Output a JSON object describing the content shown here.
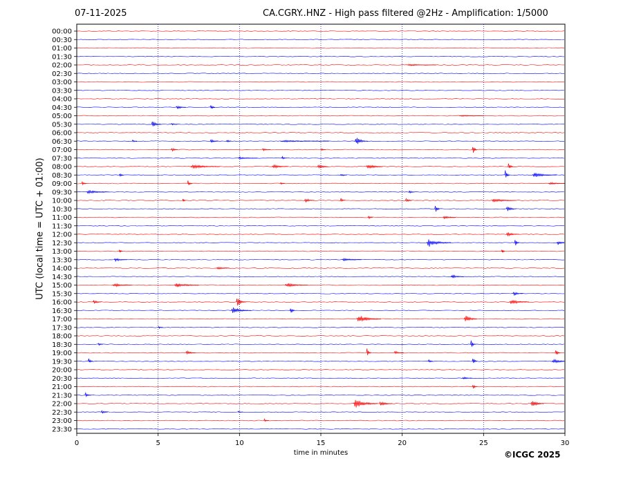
{
  "header": {
    "date": "07-11-2025",
    "title": "CA.CGRY..HNZ - High pass filtered @2Hz - Amplification: 1/5000"
  },
  "footer": {
    "copyright": "©ICGC 2025"
  },
  "colors": {
    "odd_trace": "#ff0000",
    "even_trace": "#0000ff",
    "vgrid": "#00008b"
  },
  "chart_data": {
    "type": "line",
    "title": "CA.CGRY..HNZ - High pass filtered @2Hz - Amplification: 1/5000",
    "xlabel": "time in minutes",
    "ylabel": "UTC (local time = UTC + 01:00)",
    "xlim": [
      0,
      30
    ],
    "x_ticks": [
      0,
      5,
      10,
      15,
      20,
      25,
      30
    ],
    "grid": "vertical dotted at 5-minute intervals",
    "row_labels": [
      "00:00",
      "00:30",
      "01:00",
      "01:30",
      "02:00",
      "02:30",
      "03:00",
      "03:30",
      "04:00",
      "04:30",
      "05:00",
      "05:30",
      "06:00",
      "06:30",
      "07:00",
      "07:30",
      "08:00",
      "08:30",
      "09:00",
      "09:30",
      "10:00",
      "10:30",
      "11:00",
      "11:30",
      "12:00",
      "12:30",
      "13:00",
      "13:30",
      "14:00",
      "14:30",
      "15:00",
      "15:30",
      "16:00",
      "16:30",
      "17:00",
      "17:30",
      "18:00",
      "18:30",
      "19:00",
      "19:30",
      "20:00",
      "20:30",
      "21:00",
      "21:30",
      "22:00",
      "22:30",
      "23:00",
      "23:30"
    ],
    "row_colors": "alternating red (even index) and blue (odd index)",
    "events": [
      {
        "row": "02:00",
        "minute": 20.3,
        "amp": 0.15,
        "dur": 1.8
      },
      {
        "row": "04:30",
        "minute": 6.1,
        "amp": 0.35,
        "dur": 0.6
      },
      {
        "row": "04:30",
        "minute": 8.2,
        "amp": 0.45,
        "dur": 0.3
      },
      {
        "row": "05:00",
        "minute": 23.5,
        "amp": 0.12,
        "dur": 1.5
      },
      {
        "row": "05:30",
        "minute": 4.6,
        "amp": 0.55,
        "dur": 0.6
      },
      {
        "row": "05:30",
        "minute": 5.8,
        "amp": 0.2,
        "dur": 0.4
      },
      {
        "row": "06:30",
        "minute": 3.4,
        "amp": 0.3,
        "dur": 0.3
      },
      {
        "row": "06:30",
        "minute": 8.2,
        "amp": 0.3,
        "dur": 0.5
      },
      {
        "row": "06:30",
        "minute": 9.2,
        "amp": 0.3,
        "dur": 0.3
      },
      {
        "row": "06:30",
        "minute": 12.5,
        "amp": 0.15,
        "dur": 3.0
      },
      {
        "row": "06:30",
        "minute": 17.1,
        "amp": 0.6,
        "dur": 0.8
      },
      {
        "row": "07:00",
        "minute": 5.8,
        "amp": 0.35,
        "dur": 0.4
      },
      {
        "row": "07:00",
        "minute": 11.4,
        "amp": 0.2,
        "dur": 0.5
      },
      {
        "row": "07:00",
        "minute": 15.0,
        "amp": 0.2,
        "dur": 0.3
      },
      {
        "row": "07:00",
        "minute": 24.3,
        "amp": 0.8,
        "dur": 0.3
      },
      {
        "row": "07:30",
        "minute": 9.9,
        "amp": 0.2,
        "dur": 1.2
      },
      {
        "row": "07:30",
        "minute": 12.6,
        "amp": 0.35,
        "dur": 0.3
      },
      {
        "row": "08:00",
        "minute": 7.0,
        "amp": 0.35,
        "dur": 1.8
      },
      {
        "row": "08:00",
        "minute": 12.0,
        "amp": 0.3,
        "dur": 1.0
      },
      {
        "row": "08:00",
        "minute": 14.8,
        "amp": 0.5,
        "dur": 0.6
      },
      {
        "row": "08:00",
        "minute": 17.8,
        "amp": 0.4,
        "dur": 1.0
      },
      {
        "row": "08:00",
        "minute": 26.5,
        "amp": 0.6,
        "dur": 0.3
      },
      {
        "row": "08:30",
        "minute": 2.6,
        "amp": 0.3,
        "dur": 0.3
      },
      {
        "row": "08:30",
        "minute": 16.2,
        "amp": 0.25,
        "dur": 0.4
      },
      {
        "row": "08:30",
        "minute": 26.3,
        "amp": 0.9,
        "dur": 0.3
      },
      {
        "row": "08:30",
        "minute": 28.0,
        "amp": 0.35,
        "dur": 1.5
      },
      {
        "row": "09:00",
        "minute": 0.3,
        "amp": 0.3,
        "dur": 0.3
      },
      {
        "row": "09:00",
        "minute": 6.8,
        "amp": 0.5,
        "dur": 0.3
      },
      {
        "row": "09:00",
        "minute": 12.5,
        "amp": 0.25,
        "dur": 0.3
      },
      {
        "row": "09:00",
        "minute": 29.0,
        "amp": 0.2,
        "dur": 1.0
      },
      {
        "row": "09:30",
        "minute": 0.6,
        "amp": 0.3,
        "dur": 1.4
      },
      {
        "row": "09:30",
        "minute": 20.4,
        "amp": 0.25,
        "dur": 0.4
      },
      {
        "row": "10:00",
        "minute": 6.5,
        "amp": 0.3,
        "dur": 0.2
      },
      {
        "row": "10:00",
        "minute": 14.0,
        "amp": 0.4,
        "dur": 0.6
      },
      {
        "row": "10:00",
        "minute": 16.2,
        "amp": 0.35,
        "dur": 0.3
      },
      {
        "row": "10:00",
        "minute": 20.2,
        "amp": 0.4,
        "dur": 0.4
      },
      {
        "row": "10:00",
        "minute": 25.5,
        "amp": 0.3,
        "dur": 1.5
      },
      {
        "row": "10:30",
        "minute": 22.0,
        "amp": 0.7,
        "dur": 0.3
      },
      {
        "row": "10:30",
        "minute": 26.4,
        "amp": 0.5,
        "dur": 0.6
      },
      {
        "row": "11:00",
        "minute": 17.9,
        "amp": 0.3,
        "dur": 0.3
      },
      {
        "row": "11:00",
        "minute": 22.5,
        "amp": 0.25,
        "dur": 0.8
      },
      {
        "row": "12:00",
        "minute": 26.4,
        "amp": 0.35,
        "dur": 0.8
      },
      {
        "row": "12:30",
        "minute": 21.5,
        "amp": 0.6,
        "dur": 1.5
      },
      {
        "row": "12:30",
        "minute": 26.9,
        "amp": 0.6,
        "dur": 0.3
      },
      {
        "row": "12:30",
        "minute": 29.5,
        "amp": 0.3,
        "dur": 0.8
      },
      {
        "row": "13:00",
        "minute": 2.6,
        "amp": 0.35,
        "dur": 0.2
      },
      {
        "row": "13:00",
        "minute": 26.1,
        "amp": 0.35,
        "dur": 0.2
      },
      {
        "row": "13:30",
        "minute": 2.3,
        "amp": 0.3,
        "dur": 0.8
      },
      {
        "row": "13:30",
        "minute": 16.3,
        "amp": 0.25,
        "dur": 1.2
      },
      {
        "row": "14:00",
        "minute": 8.6,
        "amp": 0.25,
        "dur": 0.8
      },
      {
        "row": "14:30",
        "minute": 23.0,
        "amp": 0.3,
        "dur": 0.8
      },
      {
        "row": "15:00",
        "minute": 2.2,
        "amp": 0.3,
        "dur": 1.2
      },
      {
        "row": "15:00",
        "minute": 6.0,
        "amp": 0.35,
        "dur": 1.5
      },
      {
        "row": "15:00",
        "minute": 12.8,
        "amp": 0.3,
        "dur": 1.4
      },
      {
        "row": "15:30",
        "minute": 26.8,
        "amp": 0.35,
        "dur": 0.6
      },
      {
        "row": "16:00",
        "minute": 1.0,
        "amp": 0.35,
        "dur": 0.5
      },
      {
        "row": "16:00",
        "minute": 9.8,
        "amp": 0.8,
        "dur": 0.6
      },
      {
        "row": "16:00",
        "minute": 26.6,
        "amp": 0.4,
        "dur": 1.2
      },
      {
        "row": "16:30",
        "minute": 9.5,
        "amp": 0.5,
        "dur": 1.2
      },
      {
        "row": "16:30",
        "minute": 13.1,
        "amp": 0.6,
        "dur": 0.3
      },
      {
        "row": "17:00",
        "minute": 17.2,
        "amp": 0.6,
        "dur": 1.5
      },
      {
        "row": "17:00",
        "minute": 23.8,
        "amp": 0.6,
        "dur": 0.8
      },
      {
        "row": "17:30",
        "minute": 5.0,
        "amp": 0.25,
        "dur": 0.3
      },
      {
        "row": "18:30",
        "minute": 1.3,
        "amp": 0.3,
        "dur": 0.3
      },
      {
        "row": "18:30",
        "minute": 24.2,
        "amp": 0.65,
        "dur": 0.3
      },
      {
        "row": "19:00",
        "minute": 6.7,
        "amp": 0.35,
        "dur": 0.6
      },
      {
        "row": "19:00",
        "minute": 17.8,
        "amp": 0.7,
        "dur": 0.3
      },
      {
        "row": "19:00",
        "minute": 19.5,
        "amp": 0.3,
        "dur": 0.6
      },
      {
        "row": "19:00",
        "minute": 29.4,
        "amp": 0.55,
        "dur": 0.3
      },
      {
        "row": "19:30",
        "minute": 0.7,
        "amp": 0.45,
        "dur": 0.3
      },
      {
        "row": "19:30",
        "minute": 21.6,
        "amp": 0.35,
        "dur": 0.3
      },
      {
        "row": "19:30",
        "minute": 24.3,
        "amp": 0.7,
        "dur": 0.3
      },
      {
        "row": "19:30",
        "minute": 29.2,
        "amp": 0.3,
        "dur": 1.2
      },
      {
        "row": "20:30",
        "minute": 23.7,
        "amp": 0.25,
        "dur": 0.6
      },
      {
        "row": "21:00",
        "minute": 24.3,
        "amp": 0.45,
        "dur": 0.3
      },
      {
        "row": "21:30",
        "minute": 0.5,
        "amp": 0.35,
        "dur": 0.4
      },
      {
        "row": "22:00",
        "minute": 17.0,
        "amp": 0.7,
        "dur": 1.5
      },
      {
        "row": "22:00",
        "minute": 18.6,
        "amp": 0.35,
        "dur": 0.8
      },
      {
        "row": "22:00",
        "minute": 27.9,
        "amp": 0.6,
        "dur": 0.8
      },
      {
        "row": "22:30",
        "minute": 1.5,
        "amp": 0.3,
        "dur": 0.4
      },
      {
        "row": "22:30",
        "minute": 9.9,
        "amp": 0.2,
        "dur": 0.3
      },
      {
        "row": "23:00",
        "minute": 11.5,
        "amp": 0.25,
        "dur": 0.3
      }
    ]
  }
}
